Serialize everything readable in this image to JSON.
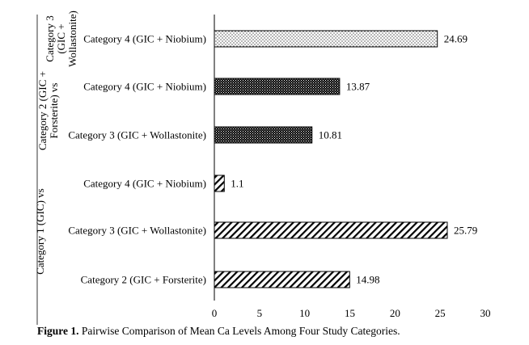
{
  "chart_data": {
    "type": "bar",
    "orientation": "horizontal",
    "groups": [
      {
        "label": "Category 3 (GIC + Wollastonite)",
        "label_lines": [
          "Category 3",
          "(GIC +",
          "Wollastonite)"
        ],
        "bars": [
          {
            "category": "Category 4 (GIC + Niobium)",
            "value": 24.69,
            "pattern": "dots"
          }
        ]
      },
      {
        "label": "Category 2 (GIC + Forsterite) vs",
        "label_lines": [
          "Category 2 (GIC +",
          "Forsterite) vs"
        ],
        "bars": [
          {
            "category": "Category 4 (GIC + Niobium)",
            "value": 13.87,
            "pattern": "dense"
          },
          {
            "category": "Category 3 (GIC + Wollastonite)",
            "value": 10.81,
            "pattern": "dense"
          }
        ]
      },
      {
        "label": "Category 1 (GIC) vs",
        "label_lines": [
          "Category 1 (GIC) vs"
        ],
        "bars": [
          {
            "category": "Category 4 (GIC + Niobium)",
            "value": 1.1,
            "pattern": "hatch"
          },
          {
            "category": "Category 3 (GIC + Wollastonite)",
            "value": 25.79,
            "pattern": "hatch"
          },
          {
            "category": "Category 2 (GIC + Forsterite)",
            "value": 14.98,
            "pattern": "hatch"
          }
        ]
      }
    ],
    "x_ticks": [
      0,
      5,
      10,
      15,
      20,
      25,
      30
    ],
    "xlim": [
      0,
      30
    ],
    "grid": false,
    "legend": "none",
    "colors": {
      "bar_stroke": "#000000",
      "fill": "#000000",
      "background": "#ffffff"
    }
  },
  "caption": {
    "bold": "Figure 1.",
    "text": " Pairwise Comparison of Mean Ca Levels Among Four Study Categories."
  }
}
